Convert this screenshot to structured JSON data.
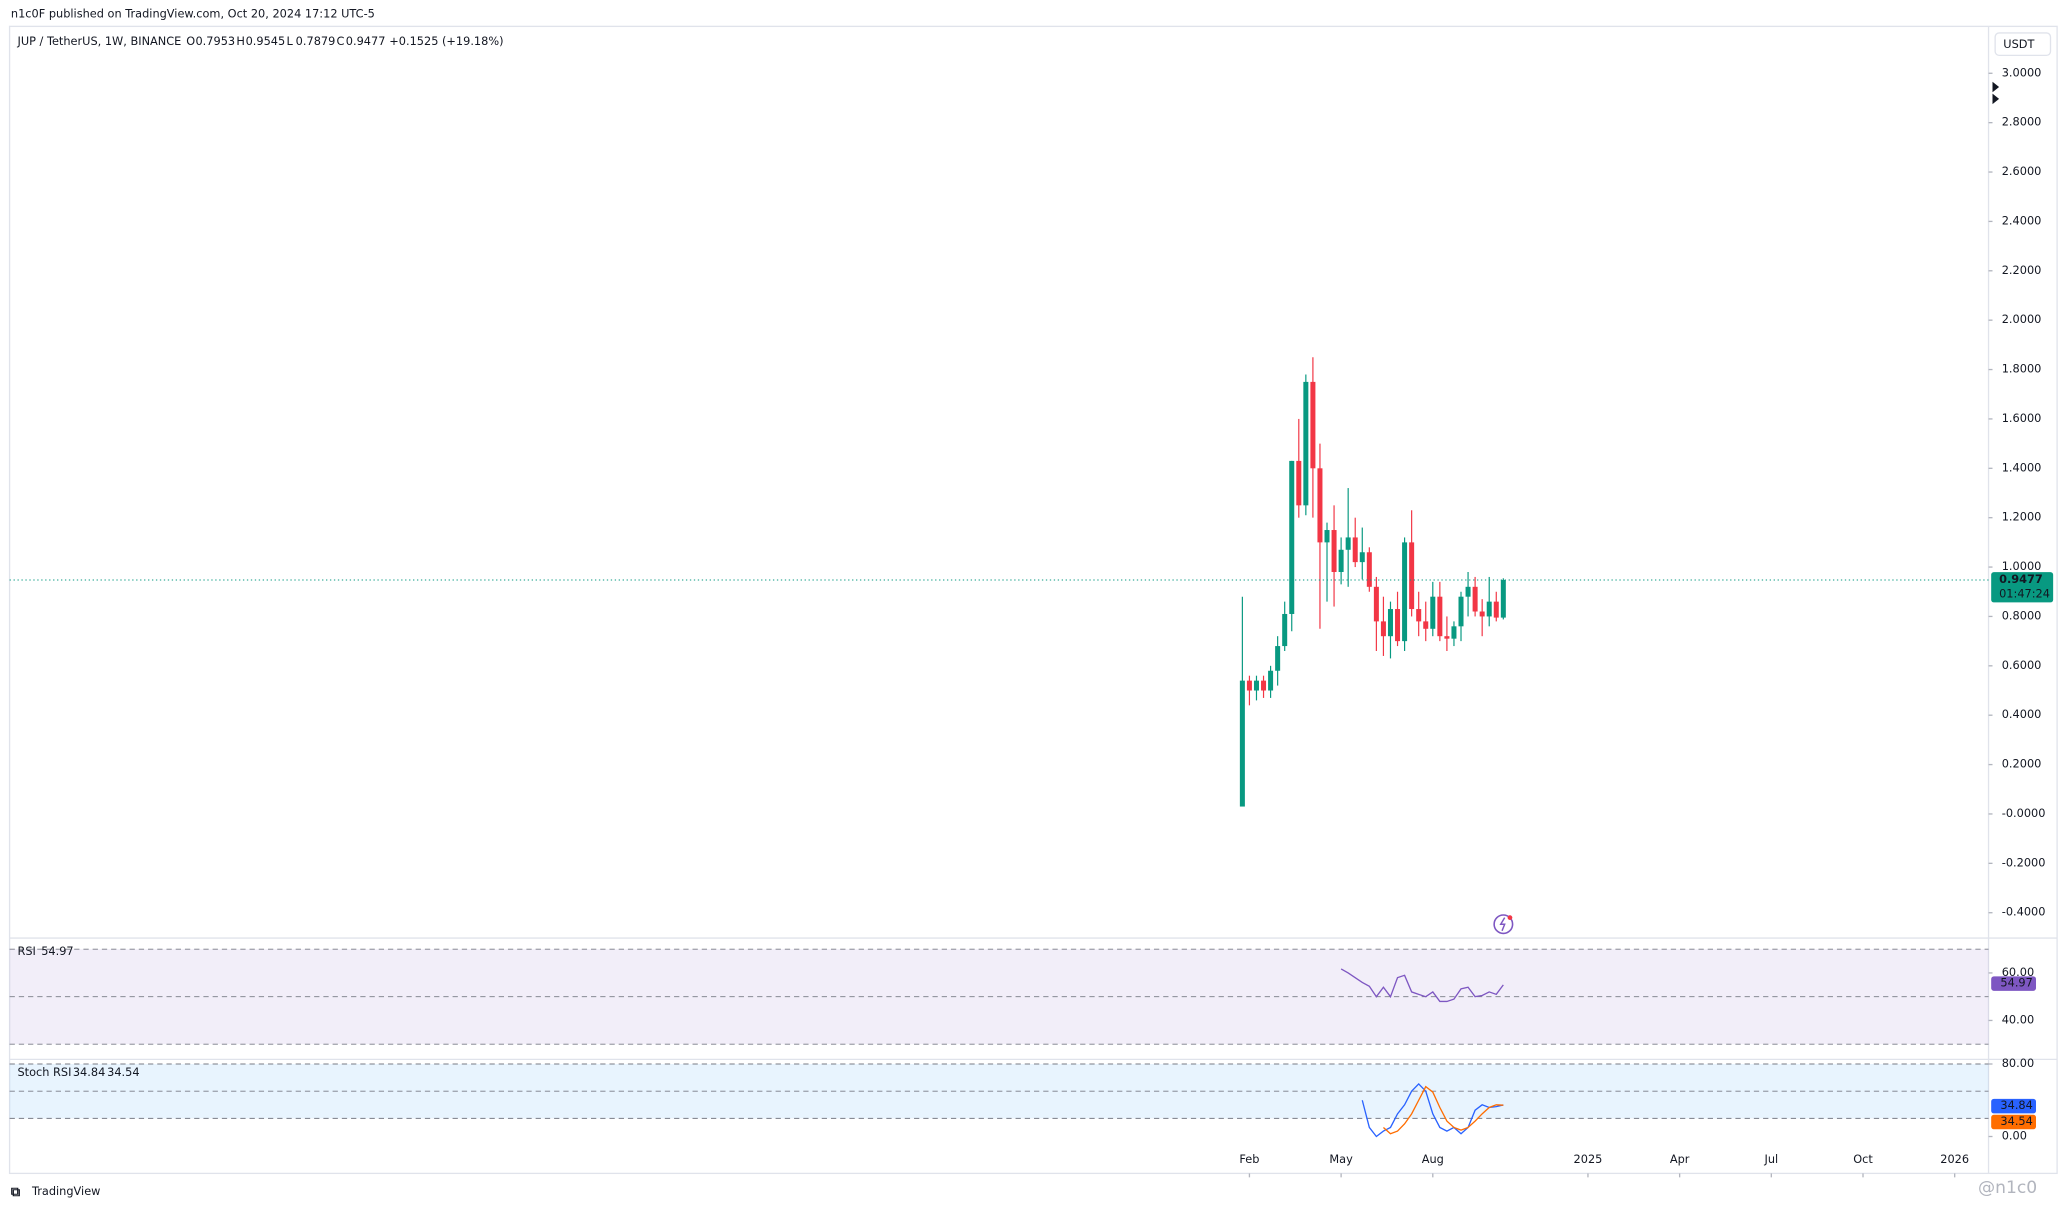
{
  "header": {
    "published": "n1c0F published on TradingView.com, Oct 20, 2024 17:12 UTC-5"
  },
  "chart_data": {
    "type": "candlestick",
    "symbol": "JUP / TetherUS, 1W, BINANCE",
    "ohlc_prefixes": [
      "O",
      "H",
      "L",
      "C"
    ],
    "change": "+0.1525 (+19.18%)",
    "currency": "USDT",
    "countdown": "01:47:24",
    "up_color": "#089981",
    "down_color": "#f23645",
    "ohlc": [
      [
        0.03,
        0.88,
        0.03,
        0.54
      ],
      [
        0.54,
        0.56,
        0.44,
        0.5
      ],
      [
        0.5,
        0.56,
        0.46,
        0.54
      ],
      [
        0.54,
        0.56,
        0.47,
        0.5
      ],
      [
        0.5,
        0.6,
        0.47,
        0.58
      ],
      [
        0.58,
        0.72,
        0.52,
        0.68
      ],
      [
        0.68,
        0.86,
        0.66,
        0.81
      ],
      [
        0.81,
        1.43,
        0.74,
        1.43
      ],
      [
        1.43,
        1.6,
        1.2,
        1.25
      ],
      [
        1.25,
        1.78,
        1.21,
        1.75
      ],
      [
        1.75,
        1.85,
        1.2,
        1.4
      ],
      [
        1.4,
        1.5,
        0.75,
        1.1
      ],
      [
        1.1,
        1.18,
        0.86,
        1.15
      ],
      [
        1.15,
        1.25,
        0.84,
        0.98
      ],
      [
        0.98,
        1.12,
        0.93,
        1.07
      ],
      [
        1.07,
        1.32,
        0.92,
        1.12
      ],
      [
        1.12,
        1.2,
        1.0,
        1.02
      ],
      [
        1.02,
        1.16,
        0.95,
        1.06
      ],
      [
        1.06,
        1.08,
        0.9,
        0.92
      ],
      [
        0.92,
        0.96,
        0.66,
        0.78
      ],
      [
        0.78,
        0.88,
        0.64,
        0.72
      ],
      [
        0.72,
        0.86,
        0.63,
        0.83
      ],
      [
        0.83,
        0.9,
        0.68,
        0.7
      ],
      [
        0.7,
        1.12,
        0.66,
        1.1
      ],
      [
        1.1,
        1.23,
        0.8,
        0.83
      ],
      [
        0.83,
        0.9,
        0.72,
        0.78
      ],
      [
        0.78,
        0.86,
        0.7,
        0.75
      ],
      [
        0.75,
        0.94,
        0.72,
        0.88
      ],
      [
        0.88,
        0.94,
        0.7,
        0.72
      ],
      [
        0.72,
        0.8,
        0.66,
        0.71
      ],
      [
        0.71,
        0.78,
        0.68,
        0.76
      ],
      [
        0.76,
        0.9,
        0.7,
        0.88
      ],
      [
        0.88,
        0.98,
        0.8,
        0.92
      ],
      [
        0.92,
        0.96,
        0.8,
        0.82
      ],
      [
        0.82,
        0.87,
        0.72,
        0.8
      ],
      [
        0.8,
        0.96,
        0.76,
        0.86
      ],
      [
        0.86,
        0.9,
        0.78,
        0.7953
      ],
      [
        0.7953,
        0.9545,
        0.7879,
        0.9477
      ]
    ],
    "xlim": [
      -174.8,
      105.8
    ],
    "xticks": [
      {
        "value": 1,
        "label": "Feb"
      },
      {
        "value": 14,
        "label": "May"
      },
      {
        "value": 27,
        "label": "Aug"
      },
      {
        "value": 49,
        "label": "2025"
      },
      {
        "value": 62,
        "label": "Apr"
      },
      {
        "value": 75,
        "label": "Jul"
      },
      {
        "value": 88,
        "label": "Oct"
      },
      {
        "value": 101,
        "label": "2026"
      }
    ],
    "ylim": [
      -0.5,
      3.19
    ],
    "yticks": [
      {
        "value": 3.0,
        "label": "3.0000"
      },
      {
        "value": 2.8,
        "label": "2.8000"
      },
      {
        "value": 2.6,
        "label": "2.6000"
      },
      {
        "value": 2.4,
        "label": "2.4000"
      },
      {
        "value": 2.2,
        "label": "2.2000"
      },
      {
        "value": 2.0,
        "label": "2.0000"
      },
      {
        "value": 1.8,
        "label": "1.8000"
      },
      {
        "value": 1.6,
        "label": "1.6000"
      },
      {
        "value": 1.4,
        "label": "1.4000"
      },
      {
        "value": 1.2,
        "label": "1.2000"
      },
      {
        "value": 1.0,
        "label": "1.0000"
      },
      {
        "value": 0.8,
        "label": "0.8000"
      },
      {
        "value": 0.6,
        "label": "0.6000"
      },
      {
        "value": 0.4,
        "label": "0.4000"
      },
      {
        "value": 0.2,
        "label": "0.2000"
      },
      {
        "value": 0,
        "label": "-0.0000"
      },
      {
        "value": -0.2,
        "label": "-0.2000"
      },
      {
        "value": -0.4,
        "label": "-0.4000"
      }
    ],
    "indicators": [
      {
        "name": "RSI",
        "ylim": [
          23.9,
          74.4
        ],
        "bands": [
          70,
          50,
          30
        ],
        "band_color": "#7e57c2",
        "yticks": [
          {
            "value": 60,
            "label": "60.00"
          },
          {
            "value": 40,
            "label": "40.00"
          }
        ],
        "series": [
          {
            "name": "54.97",
            "color": "#7e57c2",
            "values": [
              null,
              null,
              null,
              null,
              null,
              null,
              null,
              null,
              null,
              null,
              null,
              null,
              null,
              null,
              61.7,
              60,
              58,
              56,
              54.4,
              50,
              54,
              50,
              58,
              59,
              52,
              51,
              50,
              52,
              48,
              48,
              49,
              53.3,
              54,
              50,
              50.5,
              52,
              51,
              54.97
            ]
          }
        ]
      },
      {
        "name": "Stoch RSI",
        "ylim": [
          -40.7,
          84.4
        ],
        "bands": [
          80,
          50,
          20
        ],
        "band_color": "#2196f3",
        "yticks": [
          {
            "value": 80,
            "label": "80.00"
          },
          {
            "value": 0,
            "label": "0.00"
          }
        ],
        "series": [
          {
            "name": "34.84",
            "color": "#2962ff",
            "values": [
              null,
              null,
              null,
              null,
              null,
              null,
              null,
              null,
              null,
              null,
              null,
              null,
              null,
              null,
              null,
              null,
              null,
              40,
              10,
              0,
              6,
              10,
              25,
              35,
              50,
              58,
              50,
              25,
              10,
              6,
              10,
              3,
              10,
              29,
              35,
              32,
              33,
              34.84
            ]
          },
          {
            "name": "34.54",
            "color": "#ff6d00",
            "values": [
              null,
              null,
              null,
              null,
              null,
              null,
              null,
              null,
              null,
              null,
              null,
              null,
              null,
              null,
              null,
              null,
              null,
              null,
              null,
              null,
              10,
              3,
              6,
              14,
              25,
              40,
              55,
              49,
              32,
              17,
              10,
              7,
              10,
              17,
              25,
              32,
              35,
              34.54
            ]
          }
        ]
      }
    ]
  },
  "footer": {
    "brand": "TradingView",
    "watermark": "@n1c0"
  }
}
